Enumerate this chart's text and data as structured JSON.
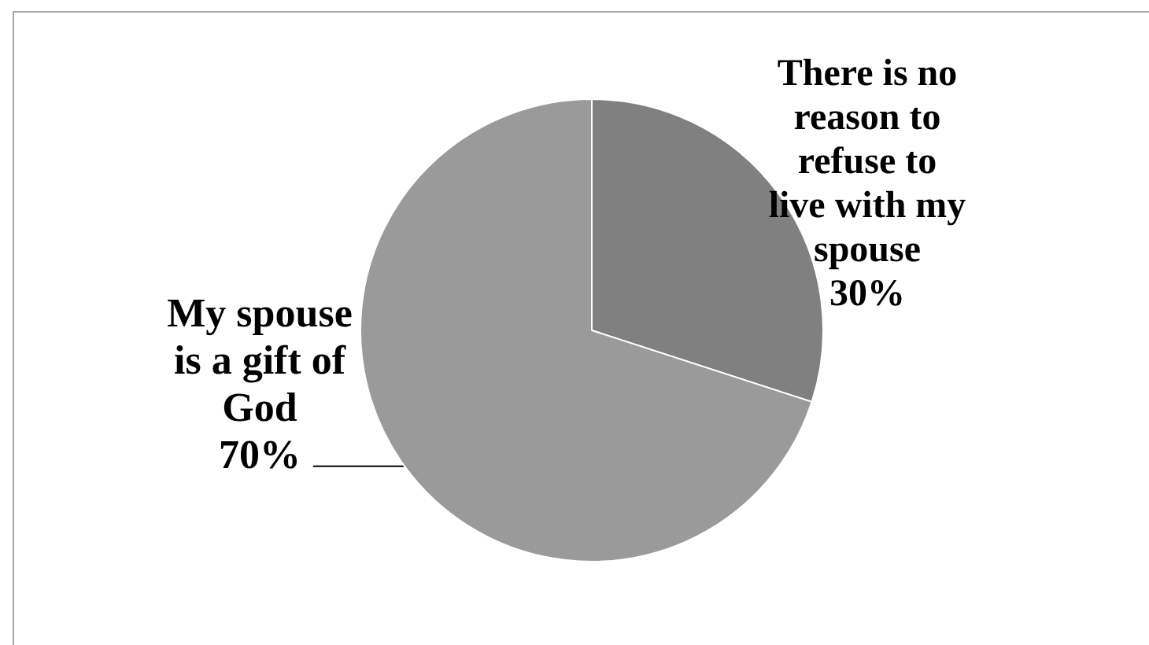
{
  "chart_data": {
    "type": "pie",
    "categories": [
      "There is no reason to refuse to live with my spouse",
      "My spouse is a gift of God"
    ],
    "values": [
      30,
      70
    ],
    "colors": [
      "#808080",
      "#9a9a9a"
    ],
    "value_labels": [
      "30%",
      "70%"
    ],
    "legend": false
  }
}
